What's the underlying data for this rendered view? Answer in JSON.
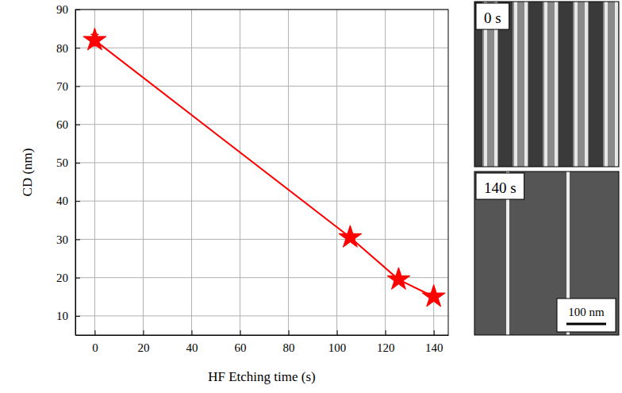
{
  "chart_data": {
    "type": "line",
    "x_label": "HF Etching time (s)",
    "y_label": "CD (nm)",
    "x": [
      0,
      105.5,
      125.5,
      140
    ],
    "values": [
      82,
      30.5,
      19.5,
      15
    ],
    "errors": [
      1.5,
      0.5,
      0.5,
      0.5
    ],
    "color": "#ff0000",
    "marker": "star",
    "line_style": "solid",
    "xlim": [
      -8,
      146
    ],
    "xticks": [
      0,
      20,
      40,
      60,
      80,
      100,
      120,
      140
    ],
    "ylim": [
      5,
      90
    ],
    "yticks": [
      10,
      20,
      30,
      40,
      50,
      60,
      70,
      80,
      90
    ],
    "grid": true
  },
  "images": [
    {
      "label": "0 s"
    },
    {
      "label": "140 s",
      "scale_bar": "100 nm"
    }
  ]
}
